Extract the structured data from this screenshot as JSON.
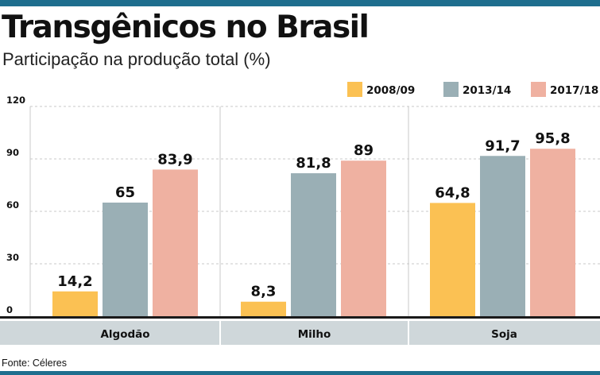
{
  "header": {
    "title": "Transgênicos no Brasil",
    "subtitle": "Participação na produção total (%)"
  },
  "footer": {
    "source": "Fonte: Céleres"
  },
  "colors": {
    "2008/09": "#fbc153",
    "2013/14": "#9aafb5",
    "2017/18": "#efb1a1",
    "frame": "#1e6e8e",
    "category_band": "#cfd7da"
  },
  "chart_data": {
    "type": "bar",
    "title": "Transgênicos no Brasil",
    "subtitle": "Participação na produção total (%)",
    "categories": [
      "Algodão",
      "Milho",
      "Soja"
    ],
    "series": [
      {
        "name": "2008/09",
        "values": [
          14.2,
          8.3,
          64.8
        ],
        "labels": [
          "14,2",
          "8,3",
          "64,8"
        ]
      },
      {
        "name": "2013/14",
        "values": [
          65,
          81.8,
          91.7
        ],
        "labels": [
          "65",
          "81,8",
          "91,7"
        ]
      },
      {
        "name": "2017/18",
        "values": [
          83.9,
          89,
          95.8
        ],
        "labels": [
          "83,9",
          "89",
          "95,8"
        ]
      }
    ],
    "yticks": [
      "0",
      "30",
      "60",
      "90",
      "120"
    ],
    "ylim": [
      0,
      120
    ],
    "grid": true,
    "legend": "top-right"
  }
}
